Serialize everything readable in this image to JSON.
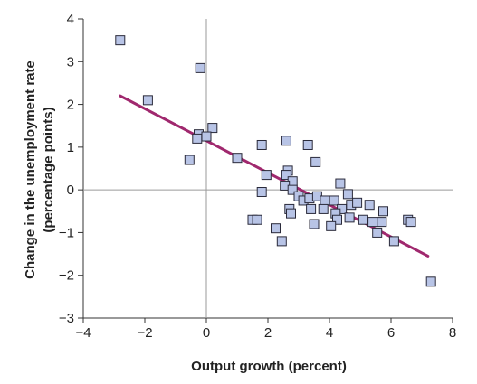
{
  "chart_data": {
    "type": "scatter",
    "title": "",
    "xlabel": "Output growth (percent)",
    "ylabel_line1": "Change in the unemployment rate",
    "ylabel_line2": "(percentage points)",
    "xlim": [
      -4,
      8
    ],
    "ylim": [
      -3,
      4
    ],
    "x_ticks": [
      -4,
      -2,
      0,
      2,
      4,
      6,
      8
    ],
    "y_ticks": [
      -3,
      -2,
      -1,
      0,
      1,
      2,
      3,
      4
    ],
    "x_tick_labels": [
      "−4",
      "−2",
      "0",
      "2",
      "4",
      "6",
      "8"
    ],
    "y_tick_labels": [
      "−3",
      "−2",
      "−1",
      "0",
      "1",
      "2",
      "3",
      "4"
    ],
    "grid": false,
    "marker_fill": "#b8c4e6",
    "marker_stroke": "#2a2a3a",
    "trend_color": "#a0286e",
    "trend_line": {
      "x": [
        -2.8,
        7.2
      ],
      "y": [
        2.2,
        -1.55
      ]
    },
    "points": [
      {
        "x": -2.8,
        "y": 3.5
      },
      {
        "x": -0.2,
        "y": 2.85
      },
      {
        "x": -1.9,
        "y": 2.1
      },
      {
        "x": 0.2,
        "y": 1.45
      },
      {
        "x": -0.25,
        "y": 1.3
      },
      {
        "x": -0.3,
        "y": 1.2
      },
      {
        "x": 0.0,
        "y": 1.25
      },
      {
        "x": 1.0,
        "y": 0.75
      },
      {
        "x": -0.55,
        "y": 0.7
      },
      {
        "x": 1.8,
        "y": 1.05
      },
      {
        "x": 2.6,
        "y": 1.15
      },
      {
        "x": 3.3,
        "y": 1.05
      },
      {
        "x": 3.55,
        "y": 0.65
      },
      {
        "x": 2.65,
        "y": 0.45
      },
      {
        "x": 2.6,
        "y": 0.35
      },
      {
        "x": 1.95,
        "y": 0.35
      },
      {
        "x": 2.8,
        "y": 0.2
      },
      {
        "x": 2.55,
        "y": 0.1
      },
      {
        "x": 2.8,
        "y": 0.0
      },
      {
        "x": 1.8,
        "y": -0.05
      },
      {
        "x": 3.0,
        "y": -0.15
      },
      {
        "x": 3.15,
        "y": -0.25
      },
      {
        "x": 3.35,
        "y": -0.2
      },
      {
        "x": 3.6,
        "y": -0.15
      },
      {
        "x": 3.85,
        "y": -0.25
      },
      {
        "x": 4.15,
        "y": -0.25
      },
      {
        "x": 4.35,
        "y": 0.15
      },
      {
        "x": 4.6,
        "y": -0.1
      },
      {
        "x": 4.7,
        "y": -0.35
      },
      {
        "x": 4.9,
        "y": -0.3
      },
      {
        "x": 5.3,
        "y": -0.35
      },
      {
        "x": 4.4,
        "y": -0.45
      },
      {
        "x": 3.4,
        "y": -0.45
      },
      {
        "x": 3.8,
        "y": -0.45
      },
      {
        "x": 4.2,
        "y": -0.55
      },
      {
        "x": 2.7,
        "y": -0.45
      },
      {
        "x": 2.75,
        "y": -0.55
      },
      {
        "x": 4.25,
        "y": -0.7
      },
      {
        "x": 4.65,
        "y": -0.65
      },
      {
        "x": 5.1,
        "y": -0.7
      },
      {
        "x": 5.4,
        "y": -0.75
      },
      {
        "x": 5.75,
        "y": -0.5
      },
      {
        "x": 5.7,
        "y": -0.75
      },
      {
        "x": 5.55,
        "y": -1.0
      },
      {
        "x": 6.1,
        "y": -1.2
      },
      {
        "x": 6.55,
        "y": -0.7
      },
      {
        "x": 6.65,
        "y": -0.75
      },
      {
        "x": 3.5,
        "y": -0.8
      },
      {
        "x": 4.05,
        "y": -0.85
      },
      {
        "x": 1.5,
        "y": -0.7
      },
      {
        "x": 1.65,
        "y": -0.7
      },
      {
        "x": 2.25,
        "y": -0.9
      },
      {
        "x": 2.45,
        "y": -1.2
      },
      {
        "x": 7.3,
        "y": -2.15
      }
    ]
  }
}
